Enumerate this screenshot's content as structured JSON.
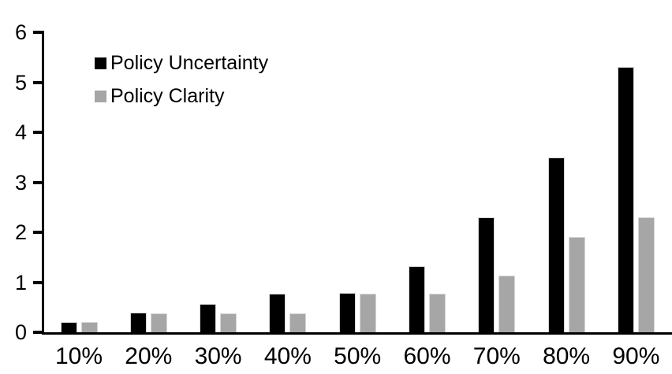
{
  "chart_data": {
    "type": "bar",
    "title": "",
    "xlabel": "",
    "ylabel": "",
    "categories": [
      "10%",
      "20%",
      "30%",
      "40%",
      "50%",
      "60%",
      "70%",
      "80%",
      "90%"
    ],
    "series": [
      {
        "name": "Policy Uncertainty",
        "color": "#000000",
        "values": [
          0.2,
          0.4,
          0.57,
          0.77,
          0.78,
          1.33,
          2.3,
          3.5,
          5.3
        ]
      },
      {
        "name": "Policy Clarity",
        "color": "#a6a6a6",
        "values": [
          0.2,
          0.38,
          0.38,
          0.38,
          0.77,
          0.77,
          1.13,
          1.9,
          2.3
        ]
      }
    ],
    "ylim": [
      0,
      6
    ],
    "yticks": [
      0,
      1,
      2,
      3,
      4,
      5,
      6
    ],
    "legend_position": "top-left",
    "grid": false
  },
  "colors": {
    "axis": "#000000",
    "bar_border": "#d6d6d6",
    "background": "#ffffff",
    "text": "#000000"
  }
}
